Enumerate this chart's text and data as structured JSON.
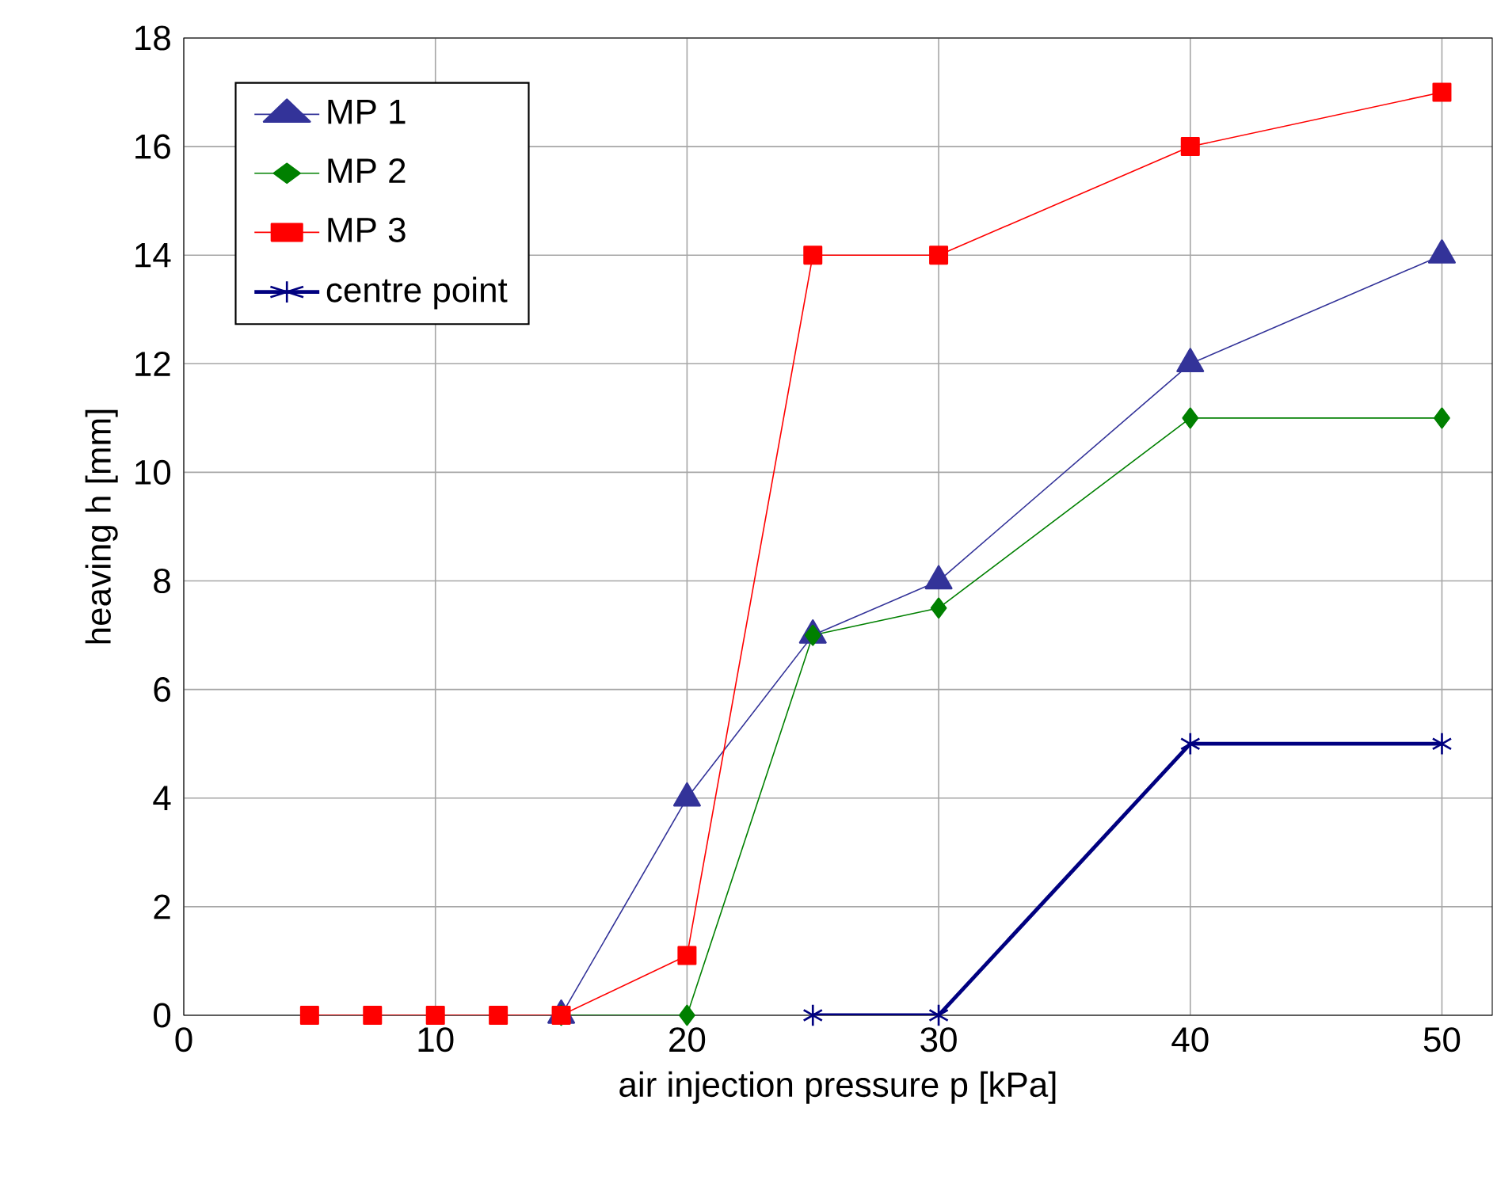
{
  "chart_data": {
    "type": "line",
    "xlabel": "air injection pressure   p [kPa]",
    "ylabel": "heaving   h [mm]",
    "xlim": [
      0,
      52
    ],
    "ylim": [
      0,
      18
    ],
    "xticks": [
      0,
      10,
      20,
      30,
      40,
      50
    ],
    "yticks": [
      0,
      2,
      4,
      6,
      8,
      10,
      12,
      14,
      16,
      18
    ],
    "grid": true,
    "legend": "top left",
    "series": [
      {
        "name": "MP 1",
        "color": "#333399",
        "marker": "triangle",
        "x": [
          15,
          20,
          25,
          30,
          40,
          50
        ],
        "values": [
          0,
          4,
          7,
          8,
          12,
          14
        ]
      },
      {
        "name": "MP 2",
        "color": "#008000",
        "marker": "diamond",
        "x": [
          15,
          20,
          25,
          30,
          40,
          50
        ],
        "values": [
          0,
          0,
          7,
          7.5,
          11,
          11
        ]
      },
      {
        "name": "MP 3",
        "color": "#ff0000",
        "marker": "square",
        "x": [
          5,
          7.5,
          10,
          12.5,
          15,
          20,
          25,
          30,
          40,
          50
        ],
        "values": [
          0,
          0,
          0,
          0,
          0,
          1.1,
          14,
          14,
          16,
          17
        ]
      },
      {
        "name": "centre point",
        "color": "#000080",
        "marker": "cross",
        "x": [
          25,
          30,
          40,
          50
        ],
        "values": [
          0,
          0,
          5,
          5
        ]
      }
    ]
  }
}
